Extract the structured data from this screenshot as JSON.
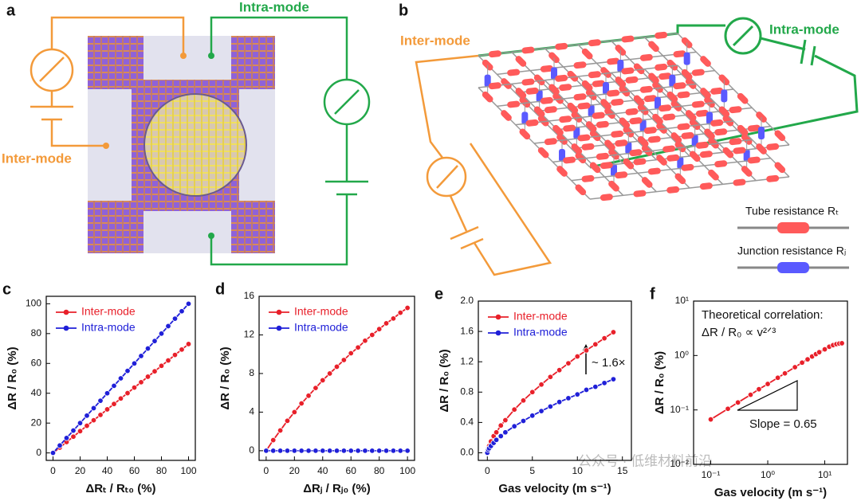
{
  "diagram_a": {
    "panel": "a",
    "labels": [
      "Intra-mode",
      "Inter-mode"
    ]
  },
  "diagram_b": {
    "panel": "b",
    "labels": [
      "Inter-mode",
      "Intra-mode"
    ],
    "legend": [
      "Tube resistance Rₜ",
      "Junction resistance Rⱼ"
    ]
  },
  "watermark": "公众号 · 低维材料前沿",
  "chart_data": [
    {
      "type": "line",
      "panel": "c",
      "x_label": "ΔRₜ / Rₜ₀ (%)",
      "y_label": "ΔR / R₀ (%)",
      "legend": "upper left",
      "x": [
        0,
        5,
        10,
        15,
        20,
        25,
        30,
        35,
        40,
        45,
        50,
        55,
        60,
        65,
        70,
        75,
        80,
        85,
        90,
        95,
        100
      ],
      "series": [
        {
          "name": "Inter-mode",
          "color": "#e8202a",
          "values": [
            0,
            3.6,
            7.3,
            10.9,
            14.6,
            18.2,
            21.9,
            25.5,
            29.2,
            32.8,
            36.5,
            40.1,
            43.8,
            47.4,
            51.1,
            54.7,
            58.4,
            62,
            65.7,
            69.3,
            73
          ]
        },
        {
          "name": "Intra-mode",
          "color": "#2020d8",
          "values": [
            0,
            5,
            10,
            15,
            20,
            25,
            30,
            35,
            40,
            45,
            50,
            55,
            60,
            65,
            70,
            75,
            80,
            85,
            90,
            95,
            100
          ]
        }
      ],
      "xlim": [
        -5,
        105
      ],
      "xticks": [
        0,
        20,
        40,
        60,
        80,
        100
      ],
      "ylim": [
        -5,
        105
      ],
      "yticks": [
        0,
        20,
        40,
        60,
        80,
        100
      ]
    },
    {
      "type": "line",
      "panel": "d",
      "x_label": "ΔRⱼ / Rⱼ₀ (%)",
      "y_label": "ΔR / R₀ (%)",
      "legend": "upper left",
      "x": [
        0,
        5,
        10,
        15,
        20,
        25,
        30,
        35,
        40,
        45,
        50,
        55,
        60,
        65,
        70,
        75,
        80,
        85,
        90,
        95,
        100
      ],
      "series": [
        {
          "name": "Inter-mode",
          "color": "#e8202a",
          "values": [
            0,
            1.1,
            2.1,
            3.1,
            4.0,
            4.9,
            5.7,
            6.5,
            7.3,
            8.0,
            8.7,
            9.4,
            10.1,
            10.7,
            11.4,
            12.0,
            12.6,
            13.2,
            13.7,
            14.3,
            14.8
          ]
        },
        {
          "name": "Intra-mode",
          "color": "#2020d8",
          "values": [
            0,
            0,
            0,
            0,
            0,
            0,
            0,
            0,
            0,
            0,
            0,
            0,
            0,
            0,
            0,
            0,
            0,
            0,
            0,
            0,
            0
          ]
        }
      ],
      "xlim": [
        -5,
        105
      ],
      "xticks": [
        0,
        20,
        40,
        60,
        80,
        100
      ],
      "ylim": [
        -1,
        16
      ],
      "yticks": [
        0,
        4,
        8,
        12,
        16
      ]
    },
    {
      "type": "line",
      "panel": "e",
      "x_label": "Gas velocity (m s⁻¹)",
      "y_label": "ΔR / R₀ (%)",
      "legend": "upper left",
      "annotations": [
        "~ 1.6×"
      ],
      "x": [
        0,
        0.1,
        0.2,
        0.4,
        0.7,
        1,
        1.5,
        2,
        3,
        4,
        5,
        6,
        7,
        8,
        9,
        10,
        11,
        12,
        13,
        14
      ],
      "series": [
        {
          "name": "Inter-mode",
          "color": "#e8202a",
          "values": [
            0,
            0.06,
            0.09,
            0.15,
            0.22,
            0.27,
            0.36,
            0.43,
            0.57,
            0.69,
            0.8,
            0.9,
            1.0,
            1.09,
            1.18,
            1.27,
            1.35,
            1.43,
            1.51,
            1.59
          ]
        },
        {
          "name": "Intra-mode",
          "color": "#2020d8",
          "values": [
            0,
            0.04,
            0.06,
            0.09,
            0.13,
            0.17,
            0.22,
            0.27,
            0.35,
            0.42,
            0.49,
            0.55,
            0.61,
            0.67,
            0.72,
            0.77,
            0.83,
            0.87,
            0.92,
            0.97
          ]
        }
      ],
      "xlim": [
        -1,
        16
      ],
      "xticks": [
        0,
        5,
        10,
        15
      ],
      "ylim": [
        -0.1,
        2.0
      ],
      "yticks": [
        {
          "value": 0,
          "label": "0.0"
        },
        0.4,
        0.8,
        1.2,
        1.6,
        {
          "value": 2,
          "label": "2.0"
        }
      ]
    },
    {
      "type": "line",
      "panel": "f",
      "x_label": "Gas velocity (m s⁻¹)",
      "y_label": "ΔR / R₀ (%)",
      "log_x": true,
      "log_y": true,
      "annotations": [
        "Theoretical correlation:",
        "ΔR / R₀ ∝ v²ᐟ³",
        "Slope = 0.65"
      ],
      "x": [
        0.1,
        0.2,
        0.3,
        0.5,
        0.7,
        1,
        1.5,
        2,
        3,
        4,
        5,
        6,
        7,
        8,
        10,
        12,
        14,
        16,
        18,
        20
      ],
      "series": [
        {
          "color": "#e8202a",
          "values": [
            0.067,
            0.105,
            0.137,
            0.19,
            0.24,
            0.3,
            0.39,
            0.47,
            0.61,
            0.74,
            0.85,
            0.96,
            1.06,
            1.15,
            1.3,
            1.45,
            1.55,
            1.62,
            1.66,
            1.68
          ]
        }
      ],
      "xlim": [
        0.05,
        25
      ],
      "xticks": [
        {
          "value": 0.1,
          "label": "10⁻¹"
        },
        {
          "value": 1,
          "label": "10⁰"
        },
        {
          "value": 10,
          "label": "10¹"
        }
      ],
      "ylim": [
        0.01,
        10
      ],
      "yticks": [
        {
          "value": 0.01,
          "label": "10⁻²"
        },
        {
          "value": 0.1,
          "label": "10⁻¹"
        },
        {
          "value": 1,
          "label": "10⁰"
        },
        {
          "value": 10,
          "label": "10¹"
        }
      ]
    }
  ]
}
